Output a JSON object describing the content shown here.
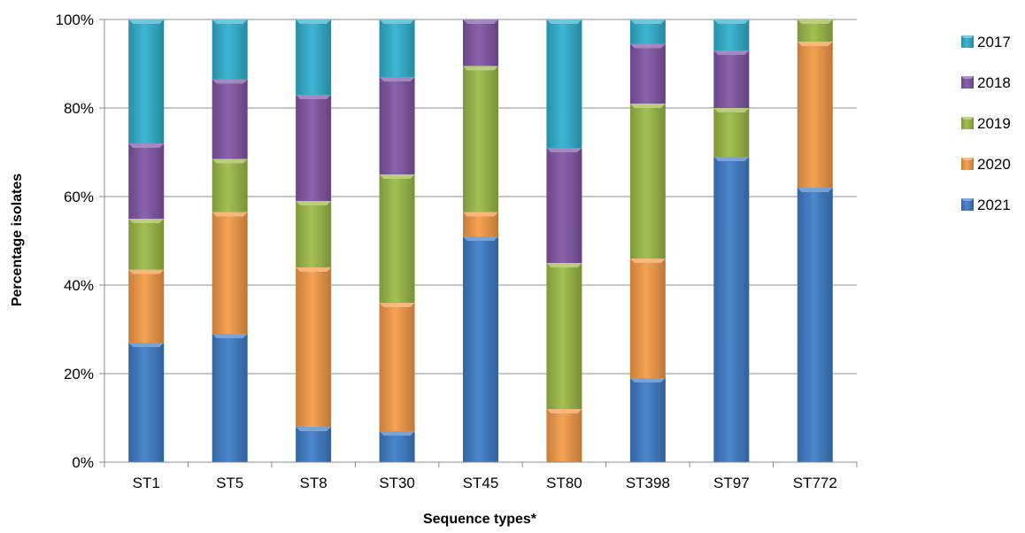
{
  "chart_data": {
    "type": "bar",
    "stacked": true,
    "percent": true,
    "title": "",
    "xlabel": "Sequence types*",
    "ylabel": "Percentage isolates",
    "ylim": [
      0,
      100
    ],
    "yticks": [
      "0%",
      "20%",
      "40%",
      "60%",
      "80%",
      "100%"
    ],
    "grid": true,
    "legend_position": "right",
    "categories": [
      "ST1",
      "ST5",
      "ST8",
      "ST30",
      "ST45",
      "ST80",
      "ST398",
      "ST97",
      "ST772"
    ],
    "series": [
      {
        "name": "2021",
        "color": "#3e7cc8",
        "values": [
          27,
          29,
          8,
          7,
          51,
          0,
          19,
          69,
          62
        ]
      },
      {
        "name": "2020",
        "color": "#f59a45",
        "values": [
          16.5,
          27.5,
          36,
          29,
          5.5,
          12,
          27,
          0,
          33
        ]
      },
      {
        "name": "2019",
        "color": "#9bbb45",
        "values": [
          11.5,
          12,
          15,
          29,
          33,
          33,
          35,
          11,
          5
        ]
      },
      {
        "name": "2018",
        "color": "#8155a5",
        "values": [
          17,
          18,
          24,
          22,
          10.5,
          26,
          13.5,
          13,
          0
        ]
      },
      {
        "name": "2017",
        "color": "#2fb0cf",
        "values": [
          28,
          13.5,
          17,
          13,
          0,
          29,
          5.5,
          7,
          0
        ]
      }
    ],
    "legend_order": [
      "2017",
      "2018",
      "2019",
      "2020",
      "2021"
    ]
  }
}
